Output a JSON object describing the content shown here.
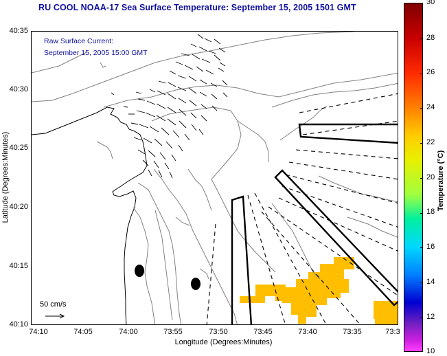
{
  "title": "RU COOL  NOAA-17  Sea Surface Temperature:  September 15, 2005 1501 GMT",
  "legend": {
    "line1": "Raw Surface Current:",
    "line2": "September 15, 2005 15:00 GMT"
  },
  "scale_arrow_label": "50 cm/s",
  "axes": {
    "y_label": "Latitude (Degrees:Minutes)",
    "x_label": "Longitude (Degrees:Minutes)",
    "y_ticks": [
      "40:35",
      "40:30",
      "40:25",
      "40:20",
      "40:15",
      "40:10"
    ],
    "x_ticks": [
      "74:10",
      "74:05",
      "74:00",
      "73:55",
      "73:50",
      "73:45",
      "73:40",
      "73:35",
      "73:3"
    ]
  },
  "colorbar": {
    "label": "Temperature (°C)",
    "ticks": [
      "30",
      "28",
      "26",
      "24",
      "22",
      "20",
      "18",
      "16",
      "14",
      "12",
      "10"
    ]
  },
  "colors": {
    "title": "#1010a0",
    "sst_patch": "#ffbf00",
    "contour": "#808080"
  }
}
